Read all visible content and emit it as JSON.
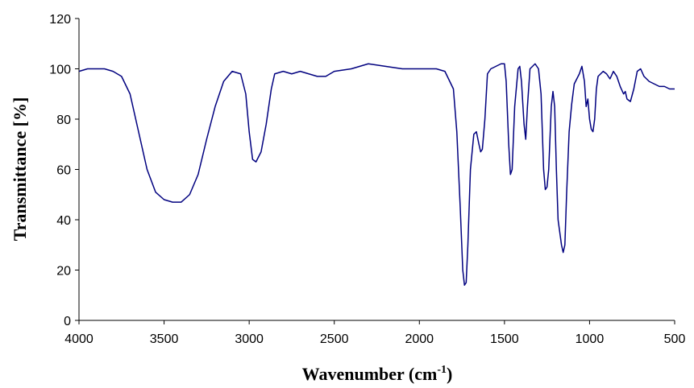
{
  "chart_data": {
    "type": "line",
    "xlabel": {
      "text": "Wavenumber  (cm",
      "superscript": "-1",
      "suffix": ")"
    },
    "ylabel": "Transmittance  [%]",
    "x": [
      4000,
      3950,
      3900,
      3850,
      3800,
      3750,
      3700,
      3650,
      3600,
      3550,
      3500,
      3450,
      3400,
      3350,
      3300,
      3250,
      3200,
      3150,
      3100,
      3050,
      3020,
      3000,
      2980,
      2960,
      2930,
      2900,
      2870,
      2850,
      2800,
      2750,
      2700,
      2650,
      2600,
      2550,
      2500,
      2400,
      2300,
      2200,
      2100,
      2000,
      1900,
      1850,
      1800,
      1780,
      1760,
      1745,
      1735,
      1725,
      1715,
      1700,
      1680,
      1665,
      1650,
      1640,
      1630,
      1615,
      1600,
      1580,
      1550,
      1520,
      1500,
      1490,
      1475,
      1465,
      1455,
      1440,
      1420,
      1410,
      1400,
      1385,
      1375,
      1365,
      1350,
      1320,
      1300,
      1285,
      1270,
      1260,
      1250,
      1240,
      1225,
      1215,
      1205,
      1195,
      1185,
      1175,
      1165,
      1155,
      1145,
      1135,
      1120,
      1105,
      1090,
      1075,
      1060,
      1045,
      1030,
      1020,
      1010,
      1000,
      990,
      980,
      970,
      960,
      950,
      920,
      900,
      880,
      860,
      840,
      820,
      800,
      790,
      780,
      760,
      740,
      720,
      700,
      680,
      650,
      620,
      590,
      560,
      530,
      500
    ],
    "series": [
      {
        "color": "#00007f",
        "values": [
          99,
          100,
          100,
          100,
          99,
          97,
          90,
          75,
          60,
          51,
          48,
          47,
          47,
          50,
          58,
          72,
          85,
          95,
          99,
          98,
          90,
          75,
          64,
          63,
          67,
          78,
          92,
          98,
          99,
          98,
          99,
          98,
          97,
          97,
          99,
          100,
          102,
          101,
          100,
          100,
          100,
          99,
          92,
          75,
          45,
          20,
          14,
          15,
          30,
          60,
          74,
          75,
          70,
          67,
          68,
          80,
          98,
          100,
          101,
          102,
          102,
          95,
          70,
          58,
          60,
          85,
          100,
          101,
          95,
          78,
          72,
          85,
          100,
          102,
          100,
          90,
          60,
          52,
          53,
          60,
          85,
          91,
          85,
          60,
          40,
          35,
          30,
          27,
          30,
          50,
          75,
          86,
          94,
          96,
          98,
          101,
          95,
          85,
          88,
          80,
          76,
          75,
          80,
          92,
          97,
          99,
          98,
          96,
          99,
          97,
          93,
          90,
          91,
          88,
          87,
          92,
          99,
          100,
          97,
          95,
          94,
          93,
          93,
          92,
          92
        ]
      }
    ],
    "xlim": [
      4000,
      500
    ],
    "xticks": [
      4000,
      3500,
      3000,
      2500,
      2000,
      1500,
      1000,
      500
    ],
    "ylim": [
      0,
      120
    ],
    "yticks": [
      0,
      20,
      40,
      60,
      80,
      100,
      120
    ]
  }
}
